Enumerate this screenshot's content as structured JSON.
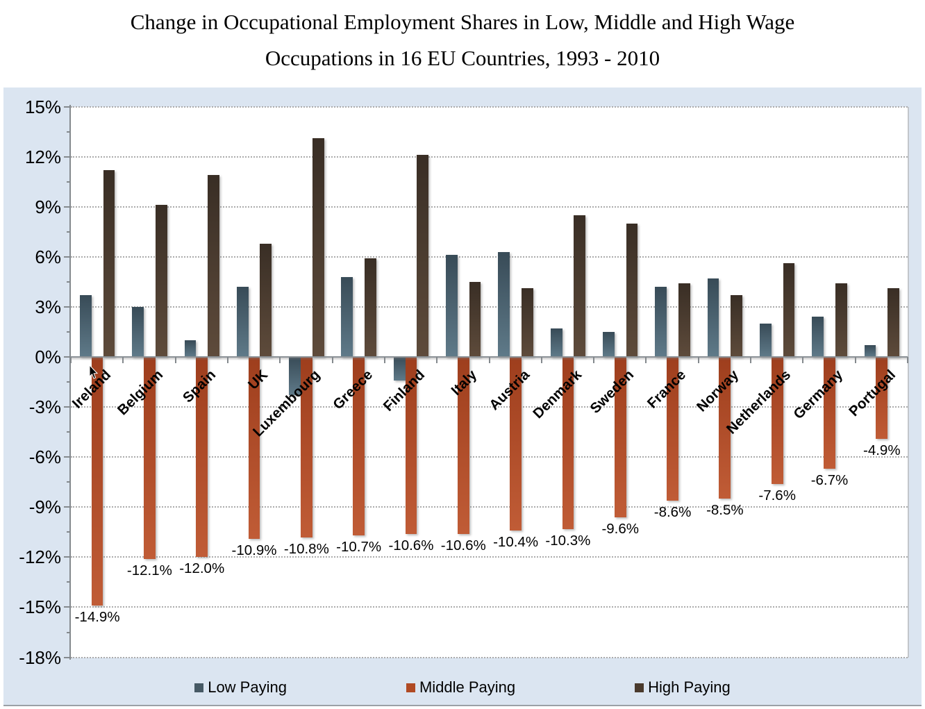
{
  "title": {
    "line1": "Change in Occupational Employment Shares in Low, Middle and High Wage",
    "line2": "Occupations in 16 EU Countries, 1993 - 2010"
  },
  "chart_data": {
    "type": "bar",
    "title": "Change in Occupational Employment Shares in Low, Middle and High Wage Occupations in 16 EU Countries, 1993 - 2010",
    "categories": [
      "Ireland",
      "Belgium",
      "Spain",
      "UK",
      "Luxembourg",
      "Greece",
      "Finland",
      "Italy",
      "Austria",
      "Denmark",
      "Sweden",
      "France",
      "Norway",
      "Netherlands",
      "Germany",
      "Portugal"
    ],
    "series": [
      {
        "name": "Low Paying",
        "color": "#465965",
        "gradient": [
          "#384b57",
          "#5f7a89"
        ],
        "values": [
          3.7,
          3.0,
          1.0,
          4.2,
          -2.3,
          4.8,
          -1.4,
          6.1,
          6.3,
          1.7,
          1.5,
          4.2,
          4.7,
          2.0,
          2.4,
          0.7
        ]
      },
      {
        "name": "Middle Paying",
        "color": "#b04a24",
        "gradient": [
          "#9e3e1d",
          "#c05c36"
        ],
        "values": [
          -14.9,
          -12.1,
          -12.0,
          -10.9,
          -10.8,
          -10.7,
          -10.6,
          -10.6,
          -10.4,
          -10.3,
          -9.6,
          -8.6,
          -8.5,
          -7.6,
          -6.7,
          -4.9
        ],
        "data_labels": [
          "-14.9%",
          "-12.1%",
          "-12.0%",
          "-10.9%",
          "-10.8%",
          "-10.7%",
          "-10.6%",
          "-10.6%",
          "-10.4%",
          "-10.3%",
          "-9.6%",
          "-8.6%",
          "-8.5%",
          "-7.6%",
          "-6.7%",
          "-4.9%"
        ]
      },
      {
        "name": "High Paying",
        "color": "#4a3a2d",
        "gradient": [
          "#392e25",
          "#5e4b3b"
        ],
        "values": [
          11.2,
          9.1,
          10.9,
          6.8,
          13.1,
          5.9,
          12.1,
          4.5,
          4.1,
          8.5,
          8.0,
          4.4,
          3.7,
          5.6,
          4.4,
          4.1
        ]
      }
    ],
    "y_axis": {
      "min": -18,
      "max": 15,
      "major_step": 3,
      "minor_step": 1.5,
      "unit": "%",
      "tick_labels": [
        "15%",
        "12%",
        "9%",
        "6%",
        "3%",
        "0%",
        "-3%",
        "-6%",
        "-9%",
        "-12%",
        "-15%",
        "-18%"
      ]
    },
    "xlabel": "",
    "ylabel": "",
    "grid": "horizontal-dotted",
    "legend": {
      "position": "bottom",
      "entries": [
        "Low Paying",
        "Middle Paying",
        "High Paying"
      ]
    },
    "plot_background": "#ffffff",
    "chart_background": "#dbe5f1"
  }
}
